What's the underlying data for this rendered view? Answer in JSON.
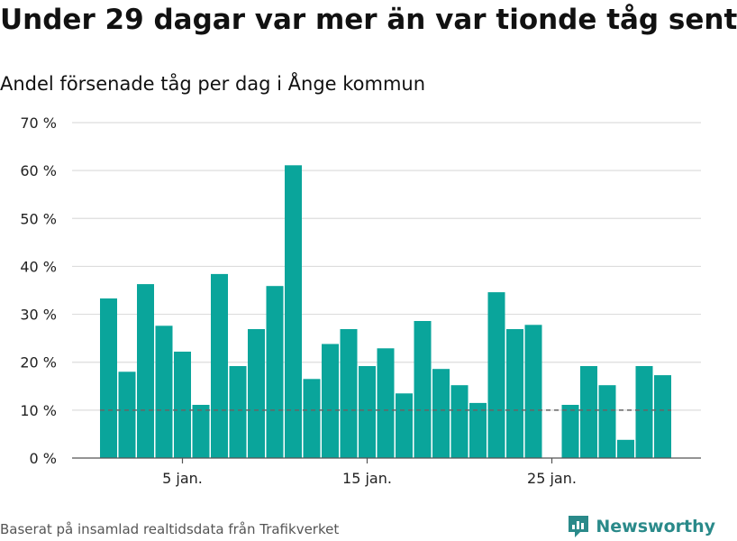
{
  "title": "Under 29 dagar var mer än var tionde tåg sent",
  "subtitle": "Andel försenade tåg per dag i Ånge kommun",
  "footer": "Baserat på insamlad realtidsdata från Trafikverket",
  "brand": "Newsworthy",
  "colors": {
    "bar": "#0aa59b",
    "grid": "#dddddd",
    "reference": "#666666",
    "brand": "#2a8a8a"
  },
  "chart_data": {
    "type": "bar",
    "x_unit": "day of January",
    "x": [
      1,
      2,
      3,
      4,
      5,
      6,
      7,
      8,
      9,
      10,
      11,
      12,
      13,
      14,
      15,
      16,
      17,
      18,
      19,
      20,
      21,
      22,
      23,
      24,
      25,
      26,
      27,
      28,
      29,
      30,
      31
    ],
    "values": [
      33.3,
      18.0,
      36.3,
      27.6,
      22.2,
      11.1,
      38.4,
      19.2,
      26.9,
      35.9,
      61.1,
      16.5,
      23.8,
      26.9,
      19.2,
      22.9,
      13.5,
      28.6,
      18.6,
      15.2,
      11.5,
      34.6,
      26.9,
      27.8,
      0,
      11.1,
      19.2,
      15.2,
      3.8,
      19.2,
      17.3
    ],
    "yticks": [
      "0 %",
      "10 %",
      "20 %",
      "30 %",
      "40 %",
      "50 %",
      "60 %",
      "70 %"
    ],
    "xticks": [
      {
        "x": 5,
        "label": "5 jan."
      },
      {
        "x": 15,
        "label": "15 jan."
      },
      {
        "x": 25,
        "label": "25 jan."
      }
    ],
    "ylim": [
      0,
      70
    ],
    "reference_line": 10,
    "grid": true,
    "legend": "none"
  }
}
